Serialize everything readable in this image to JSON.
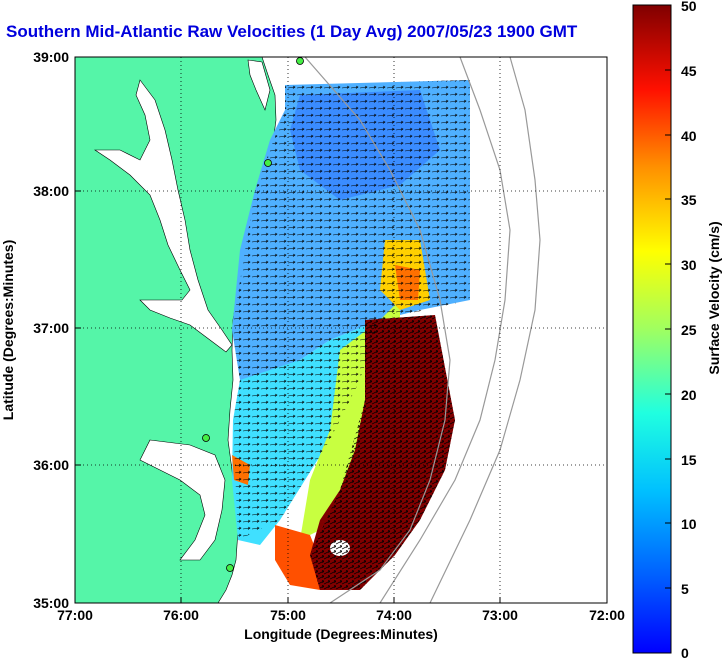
{
  "title": "Southern Mid-Atlantic Raw Velocities (1 Day Avg) 2007/05/23 1900 GMT",
  "x_axis": {
    "label": "Longitude (Degrees:Minutes)",
    "ticks": [
      "77:00",
      "76:00",
      "75:00",
      "74:00",
      "73:00",
      "72:00"
    ]
  },
  "y_axis": {
    "label": "Latitude (Degrees:Minutes)",
    "ticks": [
      "39:00",
      "38:00",
      "37:00",
      "36:00",
      "35:00"
    ]
  },
  "colorbar": {
    "label": "Surface Velocity (cm/s)",
    "ticks": [
      "50",
      "45",
      "40",
      "35",
      "30",
      "25",
      "20",
      "15",
      "10",
      "5",
      "0"
    ],
    "min": 0,
    "max": 50,
    "colormap": "jet"
  },
  "map_extent": {
    "lon_min": -77,
    "lon_max": -72,
    "lat_min": 35,
    "lat_max": 39
  },
  "colors": {
    "land": "#55f5a8",
    "title": "#0000dd",
    "gridline": "#000000",
    "bathymetry": "#999999"
  },
  "grid": "dotted"
}
